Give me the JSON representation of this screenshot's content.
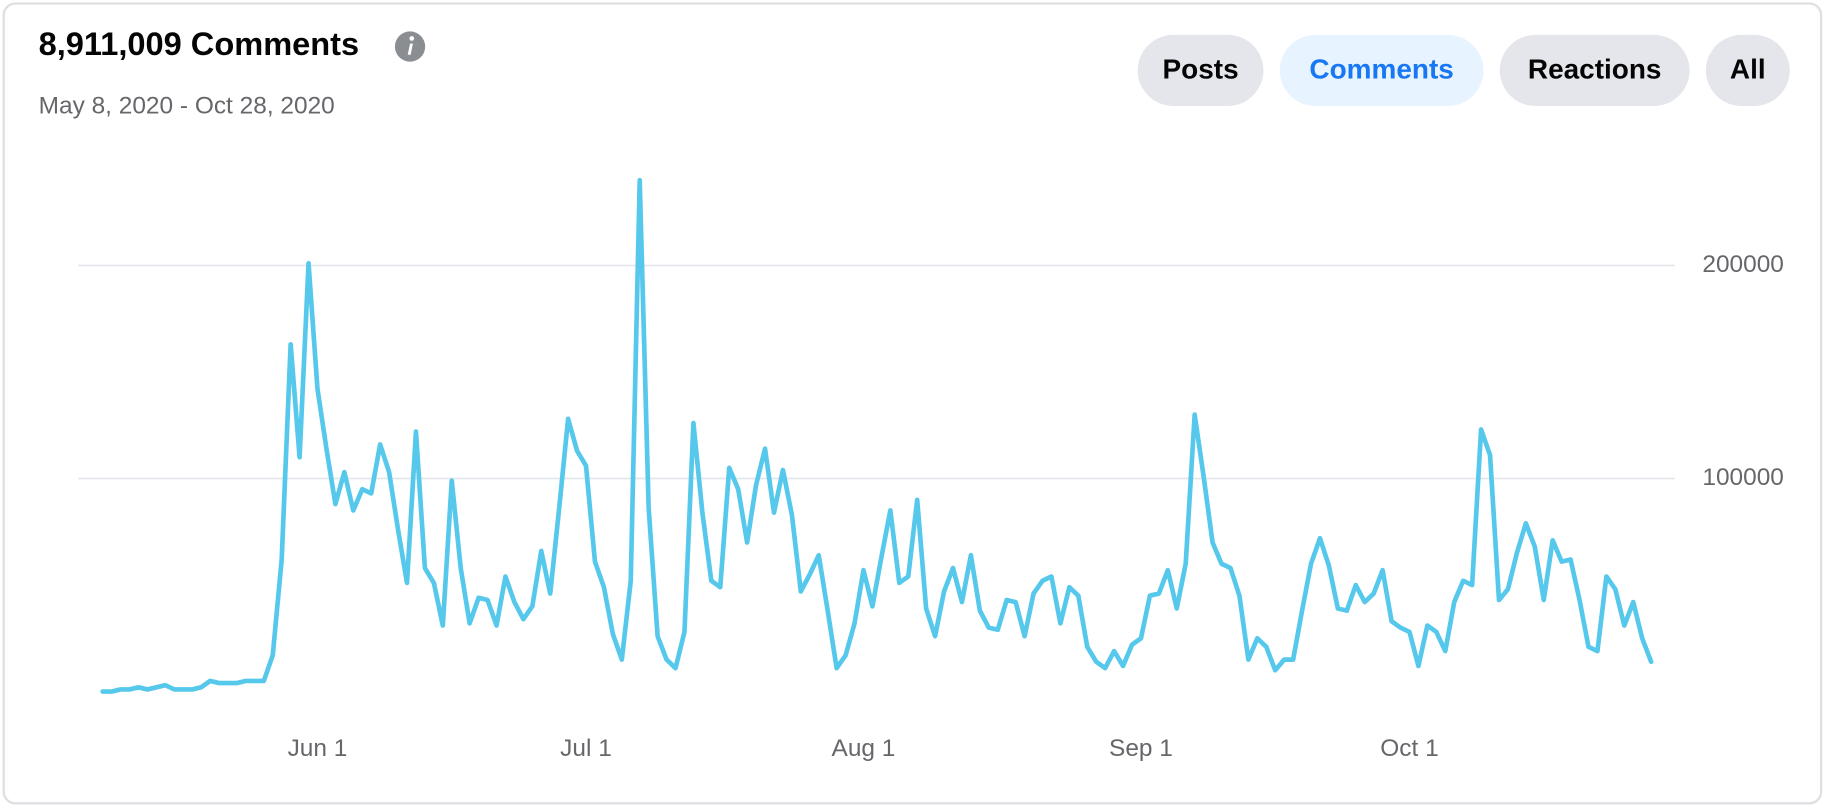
{
  "chart_data": {
    "type": "line",
    "title": "8,911,009 Comments",
    "subtitle": "May 8, 2020 - Oct 28, 2020",
    "x": [
      "May 8",
      "May 9",
      "May 10",
      "May 11",
      "May 12",
      "May 13",
      "May 14",
      "May 15",
      "May 16",
      "May 17",
      "May 18",
      "May 19",
      "May 20",
      "May 21",
      "May 22",
      "May 23",
      "May 24",
      "May 25",
      "May 26",
      "May 27",
      "May 28",
      "May 29",
      "May 30",
      "May 31",
      "Jun 1",
      "Jun 2",
      "Jun 3",
      "Jun 4",
      "Jun 5",
      "Jun 6",
      "Jun 7",
      "Jun 8",
      "Jun 9",
      "Jun 10",
      "Jun 11",
      "Jun 12",
      "Jun 13",
      "Jun 14",
      "Jun 15",
      "Jun 16",
      "Jun 17",
      "Jun 18",
      "Jun 19",
      "Jun 20",
      "Jun 21",
      "Jun 22",
      "Jun 23",
      "Jun 24",
      "Jun 25",
      "Jun 26",
      "Jun 27",
      "Jun 28",
      "Jun 29",
      "Jun 30",
      "Jul 1",
      "Jul 2",
      "Jul 3",
      "Jul 4",
      "Jul 5",
      "Jul 6",
      "Jul 7",
      "Jul 8",
      "Jul 9",
      "Jul 10",
      "Jul 11",
      "Jul 12",
      "Jul 13",
      "Jul 14",
      "Jul 15",
      "Jul 16",
      "Jul 17",
      "Jul 18",
      "Jul 19",
      "Jul 20",
      "Jul 21",
      "Jul 22",
      "Jul 23",
      "Jul 24",
      "Jul 25",
      "Jul 26",
      "Jul 27",
      "Jul 28",
      "Jul 29",
      "Jul 30",
      "Jul 31",
      "Aug 1",
      "Aug 2",
      "Aug 3",
      "Aug 4",
      "Aug 5",
      "Aug 6",
      "Aug 7",
      "Aug 8",
      "Aug 9",
      "Aug 10",
      "Aug 11",
      "Aug 12",
      "Aug 13",
      "Aug 14",
      "Aug 15",
      "Aug 16",
      "Aug 17",
      "Aug 18",
      "Aug 19",
      "Aug 20",
      "Aug 21",
      "Aug 22",
      "Aug 23",
      "Aug 24",
      "Aug 25",
      "Aug 26",
      "Aug 27",
      "Aug 28",
      "Aug 29",
      "Aug 30",
      "Aug 31",
      "Sep 1",
      "Sep 2",
      "Sep 3",
      "Sep 4",
      "Sep 5",
      "Sep 6",
      "Sep 7",
      "Sep 8",
      "Sep 9",
      "Sep 10",
      "Sep 11",
      "Sep 12",
      "Sep 13",
      "Sep 14",
      "Sep 15",
      "Sep 16",
      "Sep 17",
      "Sep 18",
      "Sep 19",
      "Sep 20",
      "Sep 21",
      "Sep 22",
      "Sep 23",
      "Sep 24",
      "Sep 25",
      "Sep 26",
      "Sep 27",
      "Sep 28",
      "Sep 29",
      "Sep 30",
      "Oct 1",
      "Oct 2",
      "Oct 3",
      "Oct 4",
      "Oct 5",
      "Oct 6",
      "Oct 7",
      "Oct 8",
      "Oct 9",
      "Oct 10",
      "Oct 11",
      "Oct 12",
      "Oct 13",
      "Oct 14",
      "Oct 15",
      "Oct 16",
      "Oct 17",
      "Oct 18",
      "Oct 19",
      "Oct 20",
      "Oct 21",
      "Oct 22",
      "Oct 23",
      "Oct 24",
      "Oct 25",
      "Oct 26",
      "Oct 27",
      "Oct 28"
    ],
    "series": [
      {
        "name": "Comments",
        "color": "#56c8ec",
        "values": [
          0,
          0,
          1000,
          1000,
          2000,
          1000,
          2000,
          3000,
          1000,
          1000,
          1000,
          2000,
          5000,
          4000,
          4000,
          4000,
          5000,
          5000,
          5000,
          17000,
          62000,
          163000,
          110000,
          201000,
          142000,
          114000,
          88000,
          103000,
          85000,
          95000,
          93000,
          116000,
          103000,
          76000,
          51000,
          122000,
          58000,
          51000,
          31000,
          99000,
          58000,
          32000,
          44000,
          43000,
          31000,
          54000,
          42000,
          34000,
          40000,
          66000,
          46000,
          86000,
          128000,
          113000,
          106000,
          61000,
          49000,
          27000,
          15000,
          52000,
          240000,
          86000,
          26000,
          15000,
          11000,
          28000,
          126000,
          84000,
          52000,
          49000,
          105000,
          95000,
          70000,
          97000,
          114000,
          84000,
          104000,
          83000,
          47000,
          55000,
          64000,
          38000,
          11000,
          17000,
          32000,
          57000,
          40000,
          63000,
          85000,
          51000,
          54000,
          90000,
          39000,
          26000,
          47000,
          58000,
          42000,
          64000,
          38000,
          30000,
          29000,
          43000,
          42000,
          26000,
          46000,
          52000,
          54000,
          32000,
          49000,
          45000,
          21000,
          14000,
          11000,
          19000,
          12000,
          22000,
          25000,
          45000,
          46000,
          57000,
          39000,
          60000,
          130000,
          101000,
          70000,
          60000,
          58000,
          45000,
          15000,
          25000,
          21000,
          10000,
          15000,
          15000,
          38000,
          60000,
          72000,
          59000,
          39000,
          38000,
          50000,
          42000,
          46000,
          57000,
          33000,
          30000,
          28000,
          12000,
          31000,
          28000,
          19000,
          42000,
          52000,
          50000,
          123000,
          111000,
          43000,
          48000,
          65000,
          79000,
          68000,
          43000,
          71000,
          61000,
          62000,
          43000,
          21000,
          19000,
          54000,
          48000,
          31000,
          42000,
          25000,
          14000
        ]
      }
    ],
    "xticks": [
      "Jun 1",
      "Jul 1",
      "Aug 1",
      "Sep 1",
      "Oct 1"
    ],
    "ylim": [
      0,
      240000
    ],
    "yticks": [
      100000,
      200000
    ],
    "grid": true
  },
  "tabs": [
    {
      "label": "Posts"
    },
    {
      "label": "Comments",
      "active": true
    },
    {
      "label": "Reactions"
    },
    {
      "label": "All"
    }
  ]
}
